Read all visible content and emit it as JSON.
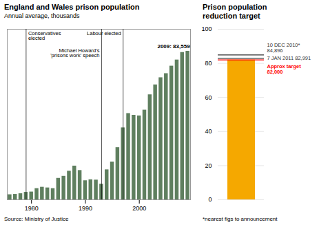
{
  "chart_data": [
    {
      "type": "bar",
      "title": "England and Wales prison population",
      "subtitle": "Annual average, thousands",
      "source": "Source: Ministry of Justice",
      "x": [
        1976,
        1977,
        1978,
        1979,
        1980,
        1981,
        1982,
        1983,
        1984,
        1985,
        1986,
        1987,
        1988,
        1989,
        1990,
        1991,
        1992,
        1993,
        1994,
        1995,
        1996,
        1997,
        1998,
        1999,
        2000,
        2001,
        2002,
        2003,
        2004,
        2005,
        2006,
        2007,
        2008,
        2009
      ],
      "values": [
        41.5,
        41.6,
        41.8,
        42.2,
        42.3,
        43.3,
        43.7,
        43.5,
        43.3,
        46.3,
        46.9,
        48.4,
        49.9,
        48.6,
        45.6,
        45.9,
        45.8,
        44.6,
        48.8,
        51.1,
        55.3,
        61.1,
        65.3,
        64.8,
        64.6,
        66.3,
        70.8,
        73.7,
        75.8,
        77.0,
        79.2,
        81.0,
        83.2,
        83.559
      ],
      "color": "#5f7f5f",
      "xlim": [
        1975.5,
        2009.5
      ],
      "xticks": [
        1980,
        1990,
        2000
      ],
      "ylim": [
        40,
        90
      ],
      "tick_labels": "x",
      "grid": false,
      "events": [
        {
          "text": "Conservatives\nelected",
          "x": 1979
        },
        {
          "text": "Michael Howard's\n'prisons work' speech",
          "x": 1993
        },
        {
          "text": "Labour elected",
          "x": 1997
        }
      ],
      "annotations": [
        {
          "text": "2009: 83,559",
          "x": 2009,
          "y": 83.559
        }
      ]
    },
    {
      "type": "bar",
      "title": "Prison population\nreduction target",
      "footnote": "*nearest figs to announcement",
      "categories": [
        null
      ],
      "values": [
        82.0
      ],
      "color": "#f5a800",
      "ylim": [
        0,
        100
      ],
      "yticks": [
        0,
        20,
        40,
        60,
        80,
        100
      ],
      "grid": true,
      "tick_labels": "y",
      "annotations": [
        {
          "text": "10 DEC 2010*",
          "y": 84.896,
          "label": "84,896",
          "color": "#333333"
        },
        {
          "text": "7 JAN 2011",
          "y": 82.991,
          "label": "82,991",
          "color": "#333333"
        },
        {
          "text": "Approx target",
          "y": 82.0,
          "label": "82,000",
          "color": "red"
        }
      ]
    }
  ]
}
